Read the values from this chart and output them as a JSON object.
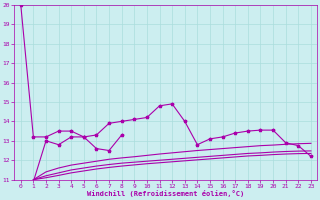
{
  "xlabel": "Windchill (Refroidissement éolien,°C)",
  "bg_color": "#cceef0",
  "line_color": "#aa00aa",
  "grid_color": "#aadddd",
  "xlim": [
    -0.5,
    23.5
  ],
  "ylim": [
    11,
    20
  ],
  "xticks": [
    0,
    1,
    2,
    3,
    4,
    5,
    6,
    7,
    8,
    9,
    10,
    11,
    12,
    13,
    14,
    15,
    16,
    17,
    18,
    19,
    20,
    21,
    22,
    23
  ],
  "yticks": [
    11,
    12,
    13,
    14,
    15,
    16,
    17,
    18,
    19,
    20
  ],
  "line1_x": [
    0,
    1,
    2,
    3,
    4,
    5,
    6,
    7,
    8,
    9,
    10,
    11,
    12,
    13,
    14,
    15,
    16,
    17,
    18,
    19,
    20,
    21,
    22,
    23
  ],
  "line1_y": [
    20.0,
    13.2,
    13.2,
    13.5,
    13.5,
    13.2,
    13.3,
    13.9,
    14.0,
    14.1,
    14.2,
    14.8,
    14.9,
    14.0,
    12.8,
    13.1,
    13.2,
    13.4,
    13.5,
    13.55,
    13.55,
    12.9,
    12.75,
    12.2
  ],
  "line2_x": [
    1,
    2,
    3,
    4,
    5,
    6,
    7,
    8
  ],
  "line2_y": [
    10.9,
    13.0,
    12.8,
    13.2,
    13.2,
    12.6,
    12.5,
    13.3
  ],
  "line3_x": [
    1,
    2,
    3,
    4,
    5,
    6,
    7,
    8,
    9,
    10,
    11,
    12,
    13,
    14,
    15,
    16,
    17,
    18,
    19,
    20,
    21,
    22,
    23
  ],
  "line3_y": [
    11.0,
    11.4,
    11.6,
    11.75,
    11.85,
    11.95,
    12.05,
    12.12,
    12.18,
    12.25,
    12.32,
    12.38,
    12.44,
    12.5,
    12.55,
    12.6,
    12.65,
    12.7,
    12.75,
    12.78,
    12.82,
    12.85,
    12.87
  ],
  "line4_x": [
    1,
    2,
    3,
    4,
    5,
    6,
    7,
    8,
    9,
    10,
    11,
    12,
    13,
    14,
    15,
    16,
    17,
    18,
    19,
    20,
    21,
    22,
    23
  ],
  "line4_y": [
    11.0,
    11.2,
    11.35,
    11.5,
    11.6,
    11.7,
    11.78,
    11.85,
    11.9,
    11.95,
    12.0,
    12.05,
    12.1,
    12.15,
    12.2,
    12.25,
    12.3,
    12.35,
    12.38,
    12.42,
    12.45,
    12.47,
    12.48
  ],
  "line5_x": [
    1,
    2,
    3,
    4,
    5,
    6,
    7,
    8,
    9,
    10,
    11,
    12,
    13,
    14,
    15,
    16,
    17,
    18,
    19,
    20,
    21,
    22,
    23
  ],
  "line5_y": [
    11.0,
    11.1,
    11.22,
    11.35,
    11.45,
    11.55,
    11.63,
    11.7,
    11.76,
    11.82,
    11.87,
    11.92,
    11.97,
    12.02,
    12.07,
    12.12,
    12.17,
    12.22,
    12.25,
    12.29,
    12.32,
    12.34,
    12.35
  ]
}
